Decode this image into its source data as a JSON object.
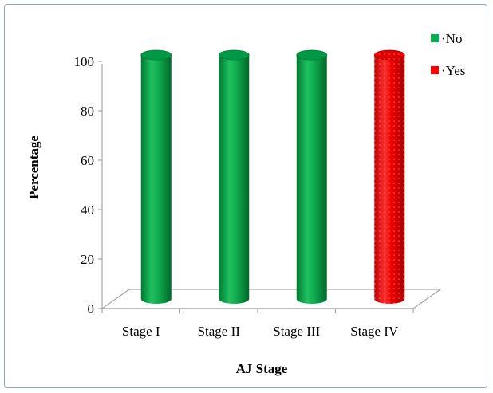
{
  "chart_data": {
    "type": "bar",
    "title": "",
    "xlabel": "AJ Stage",
    "ylabel": "Percentage",
    "categories": [
      "Stage I",
      "Stage II",
      "Stage III",
      "Stage IV"
    ],
    "series": [
      {
        "name": "No",
        "values": [
          100,
          100,
          100,
          0
        ],
        "color": "#00b050"
      },
      {
        "name": "Yes",
        "values": [
          0,
          0,
          0,
          100
        ],
        "color": "#ff0000"
      }
    ],
    "ylim": [
      0,
      100
    ],
    "yticks": [
      "0",
      "20",
      "40",
      "60",
      "80",
      "100"
    ],
    "legend": [
      {
        "label": "·No",
        "color": "#00b050"
      },
      {
        "label": "·Yes",
        "color": "#ff0000"
      }
    ],
    "legend_position": "top-right",
    "grid": false,
    "style": "3d-cylinder"
  }
}
